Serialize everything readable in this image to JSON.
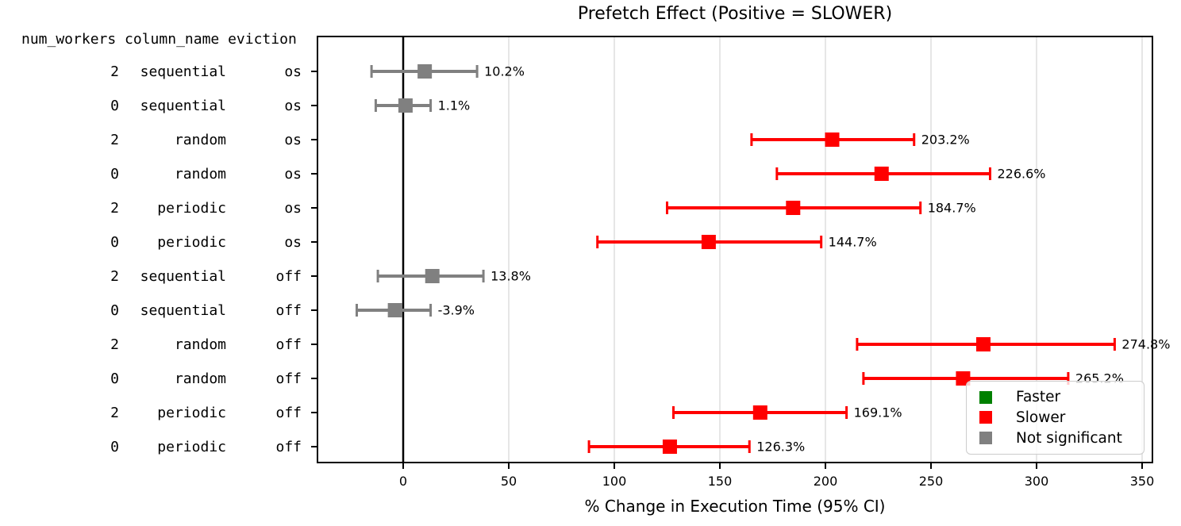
{
  "title": "Prefetch Effect (Positive = SLOWER)",
  "header_text": "num_workers column_name eviction",
  "chart_data": {
    "type": "scatter",
    "variant": "horizontal-errorbar",
    "title": "Prefetch Effect (Positive = SLOWER)",
    "xlabel": "% Change in Execution Time (95% CI)",
    "xlim": [
      -41,
      355
    ],
    "xticks": [
      0,
      50,
      100,
      150,
      200,
      250,
      300,
      350
    ],
    "grid": "vertical",
    "zero_line_x": 0,
    "columns": [
      "num_workers",
      "column_name",
      "eviction"
    ],
    "rows": [
      {
        "num_workers": "2",
        "column_name": "sequential",
        "eviction": "os",
        "value": 10.2,
        "ci_low": -15,
        "ci_high": 35,
        "label": "10.2%",
        "status": "not_significant"
      },
      {
        "num_workers": "0",
        "column_name": "sequential",
        "eviction": "os",
        "value": 1.1,
        "ci_low": -13,
        "ci_high": 13,
        "label": "1.1%",
        "status": "not_significant"
      },
      {
        "num_workers": "2",
        "column_name": "random",
        "eviction": "os",
        "value": 203.2,
        "ci_low": 165,
        "ci_high": 242,
        "label": "203.2%",
        "status": "slower"
      },
      {
        "num_workers": "0",
        "column_name": "random",
        "eviction": "os",
        "value": 226.6,
        "ci_low": 177,
        "ci_high": 278,
        "label": "226.6%",
        "status": "slower"
      },
      {
        "num_workers": "2",
        "column_name": "periodic",
        "eviction": "os",
        "value": 184.7,
        "ci_low": 125,
        "ci_high": 245,
        "label": "184.7%",
        "status": "slower"
      },
      {
        "num_workers": "0",
        "column_name": "periodic",
        "eviction": "os",
        "value": 144.7,
        "ci_low": 92,
        "ci_high": 198,
        "label": "144.7%",
        "status": "slower"
      },
      {
        "num_workers": "2",
        "column_name": "sequential",
        "eviction": "off",
        "value": 13.8,
        "ci_low": -12,
        "ci_high": 38,
        "label": "13.8%",
        "status": "not_significant"
      },
      {
        "num_workers": "0",
        "column_name": "sequential",
        "eviction": "off",
        "value": -3.9,
        "ci_low": -22,
        "ci_high": 13,
        "label": "-3.9%",
        "status": "not_significant"
      },
      {
        "num_workers": "2",
        "column_name": "random",
        "eviction": "off",
        "value": 274.8,
        "ci_low": 215,
        "ci_high": 337,
        "label": "274.8%",
        "status": "slower"
      },
      {
        "num_workers": "0",
        "column_name": "random",
        "eviction": "off",
        "value": 265.2,
        "ci_low": 218,
        "ci_high": 315,
        "label": "265.2%",
        "status": "slower"
      },
      {
        "num_workers": "2",
        "column_name": "periodic",
        "eviction": "off",
        "value": 169.1,
        "ci_low": 128,
        "ci_high": 210,
        "label": "169.1%",
        "status": "slower"
      },
      {
        "num_workers": "0",
        "column_name": "periodic",
        "eviction": "off",
        "value": 126.3,
        "ci_low": 88,
        "ci_high": 164,
        "label": "126.3%",
        "status": "slower"
      }
    ],
    "legend": [
      {
        "label": "Faster",
        "color": "#008000",
        "status": "faster"
      },
      {
        "label": "Slower",
        "color": "#ff0000",
        "status": "slower"
      },
      {
        "label": "Not significant",
        "color": "#808080",
        "status": "not_significant"
      }
    ],
    "legend_position": "lower right"
  },
  "colors": {
    "faster": "#008000",
    "slower": "#ff0000",
    "not_significant": "#808080",
    "grid": "#e6e6e6",
    "axis": "#000000",
    "background": "#ffffff"
  }
}
